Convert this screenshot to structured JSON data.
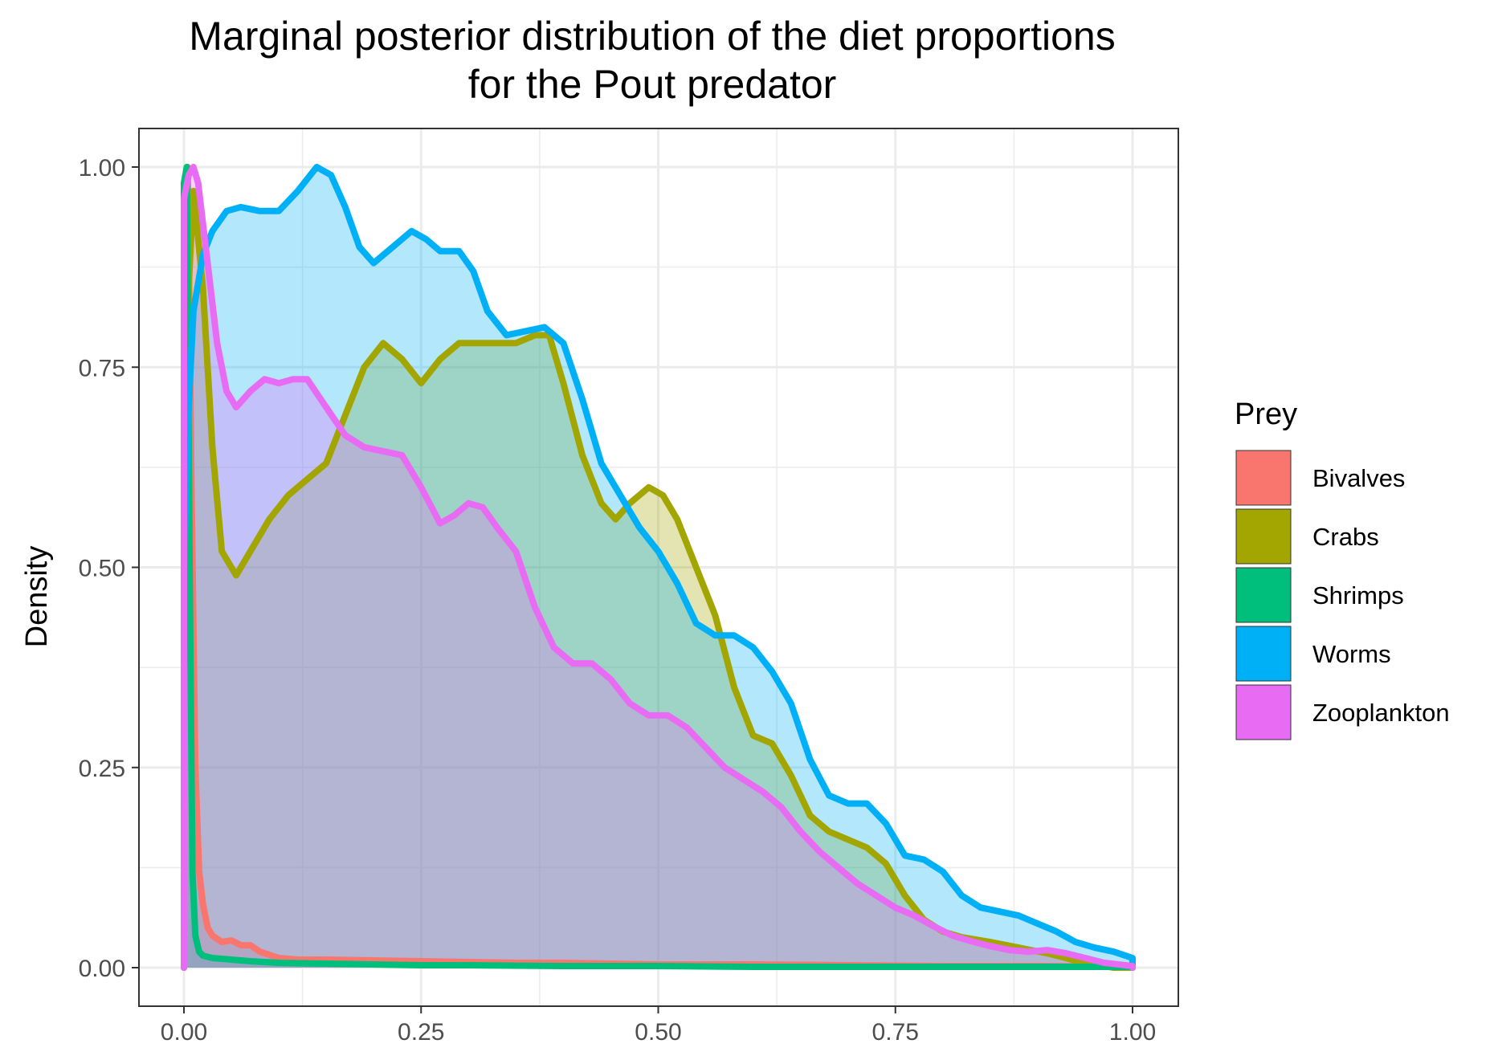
{
  "chart_data": {
    "type": "area",
    "title_line1": "Marginal posterior distribution of the diet proportions",
    "title_line2": "for the Pout predator",
    "xlabel": "",
    "ylabel": "Density",
    "xlim": [
      0,
      1
    ],
    "ylim": [
      0,
      1
    ],
    "x_ticks": [
      "0.00",
      "0.25",
      "0.50",
      "0.75",
      "1.00"
    ],
    "y_ticks": [
      "0.00",
      "0.25",
      "0.50",
      "0.75",
      "1.00"
    ],
    "grid": true,
    "legend_title": "Prey",
    "legend_position": "right",
    "series": [
      {
        "name": "Bivalves",
        "color": "#F8766D",
        "points": [
          [
            0,
            0
          ],
          [
            0,
            0.95
          ],
          [
            0.004,
            1.0
          ],
          [
            0.008,
            0.6
          ],
          [
            0.012,
            0.25
          ],
          [
            0.016,
            0.12
          ],
          [
            0.02,
            0.08
          ],
          [
            0.025,
            0.05
          ],
          [
            0.03,
            0.04
          ],
          [
            0.04,
            0.032
          ],
          [
            0.05,
            0.034
          ],
          [
            0.06,
            0.028
          ],
          [
            0.07,
            0.028
          ],
          [
            0.08,
            0.02
          ],
          [
            0.09,
            0.016
          ],
          [
            0.1,
            0.012
          ],
          [
            0.12,
            0.01
          ],
          [
            0.15,
            0.01
          ],
          [
            0.2,
            0.009
          ],
          [
            0.25,
            0.008
          ],
          [
            0.3,
            0.007
          ],
          [
            0.35,
            0.006
          ],
          [
            0.4,
            0.006
          ],
          [
            0.45,
            0.005
          ],
          [
            0.5,
            0.004
          ],
          [
            0.55,
            0.004
          ],
          [
            0.6,
            0.004
          ],
          [
            0.7,
            0.003
          ],
          [
            0.8,
            0.002
          ],
          [
            0.9,
            0.002
          ],
          [
            1.0,
            0.001
          ],
          [
            1.0,
            0
          ]
        ]
      },
      {
        "name": "Crabs",
        "color": "#A3A500",
        "points": [
          [
            0,
            0
          ],
          [
            0,
            0.6
          ],
          [
            0.005,
            0.85
          ],
          [
            0.01,
            0.97
          ],
          [
            0.02,
            0.85
          ],
          [
            0.03,
            0.65
          ],
          [
            0.04,
            0.52
          ],
          [
            0.055,
            0.49
          ],
          [
            0.07,
            0.52
          ],
          [
            0.09,
            0.56
          ],
          [
            0.11,
            0.59
          ],
          [
            0.13,
            0.61
          ],
          [
            0.15,
            0.63
          ],
          [
            0.17,
            0.69
          ],
          [
            0.19,
            0.75
          ],
          [
            0.21,
            0.78
          ],
          [
            0.23,
            0.76
          ],
          [
            0.25,
            0.73
          ],
          [
            0.27,
            0.76
          ],
          [
            0.29,
            0.78
          ],
          [
            0.31,
            0.78
          ],
          [
            0.33,
            0.78
          ],
          [
            0.35,
            0.78
          ],
          [
            0.37,
            0.79
          ],
          [
            0.385,
            0.79
          ],
          [
            0.4,
            0.73
          ],
          [
            0.42,
            0.64
          ],
          [
            0.44,
            0.58
          ],
          [
            0.455,
            0.56
          ],
          [
            0.47,
            0.58
          ],
          [
            0.49,
            0.6
          ],
          [
            0.505,
            0.59
          ],
          [
            0.52,
            0.56
          ],
          [
            0.54,
            0.5
          ],
          [
            0.56,
            0.44
          ],
          [
            0.58,
            0.35
          ],
          [
            0.6,
            0.29
          ],
          [
            0.62,
            0.28
          ],
          [
            0.64,
            0.24
          ],
          [
            0.66,
            0.19
          ],
          [
            0.68,
            0.17
          ],
          [
            0.7,
            0.16
          ],
          [
            0.72,
            0.15
          ],
          [
            0.74,
            0.13
          ],
          [
            0.76,
            0.09
          ],
          [
            0.78,
            0.06
          ],
          [
            0.8,
            0.045
          ],
          [
            0.82,
            0.038
          ],
          [
            0.85,
            0.032
          ],
          [
            0.88,
            0.025
          ],
          [
            0.91,
            0.018
          ],
          [
            0.93,
            0.012
          ],
          [
            0.95,
            0.005
          ],
          [
            0.97,
            0.002
          ],
          [
            0.98,
            0
          ],
          [
            1.0,
            0
          ]
        ]
      },
      {
        "name": "Shrimps",
        "color": "#00BF7D",
        "points": [
          [
            0,
            0
          ],
          [
            0,
            0.98
          ],
          [
            0.003,
            1.0
          ],
          [
            0.006,
            0.5
          ],
          [
            0.009,
            0.12
          ],
          [
            0.012,
            0.04
          ],
          [
            0.016,
            0.02
          ],
          [
            0.02,
            0.015
          ],
          [
            0.03,
            0.012
          ],
          [
            0.05,
            0.01
          ],
          [
            0.07,
            0.008
          ],
          [
            0.1,
            0.006
          ],
          [
            0.15,
            0.005
          ],
          [
            0.2,
            0.004
          ],
          [
            0.25,
            0.003
          ],
          [
            0.3,
            0.003
          ],
          [
            0.4,
            0.002
          ],
          [
            0.5,
            0.002
          ],
          [
            0.6,
            0.001
          ],
          [
            0.7,
            0.001
          ],
          [
            0.8,
            0.001
          ],
          [
            1.0,
            0.001
          ],
          [
            1.0,
            0
          ]
        ]
      },
      {
        "name": "Worms",
        "color": "#00B0F6",
        "points": [
          [
            0,
            0
          ],
          [
            0,
            0.5
          ],
          [
            0.005,
            0.7
          ],
          [
            0.01,
            0.82
          ],
          [
            0.02,
            0.89
          ],
          [
            0.03,
            0.92
          ],
          [
            0.045,
            0.945
          ],
          [
            0.06,
            0.95
          ],
          [
            0.08,
            0.945
          ],
          [
            0.1,
            0.945
          ],
          [
            0.12,
            0.97
          ],
          [
            0.14,
            1.0
          ],
          [
            0.155,
            0.99
          ],
          [
            0.17,
            0.95
          ],
          [
            0.185,
            0.9
          ],
          [
            0.2,
            0.88
          ],
          [
            0.22,
            0.9
          ],
          [
            0.24,
            0.92
          ],
          [
            0.255,
            0.91
          ],
          [
            0.27,
            0.895
          ],
          [
            0.29,
            0.895
          ],
          [
            0.305,
            0.87
          ],
          [
            0.32,
            0.82
          ],
          [
            0.34,
            0.79
          ],
          [
            0.36,
            0.795
          ],
          [
            0.38,
            0.8
          ],
          [
            0.4,
            0.78
          ],
          [
            0.42,
            0.71
          ],
          [
            0.44,
            0.63
          ],
          [
            0.46,
            0.59
          ],
          [
            0.48,
            0.55
          ],
          [
            0.5,
            0.52
          ],
          [
            0.52,
            0.48
          ],
          [
            0.54,
            0.43
          ],
          [
            0.56,
            0.415
          ],
          [
            0.58,
            0.415
          ],
          [
            0.6,
            0.4
          ],
          [
            0.62,
            0.37
          ],
          [
            0.64,
            0.33
          ],
          [
            0.66,
            0.26
          ],
          [
            0.68,
            0.215
          ],
          [
            0.7,
            0.205
          ],
          [
            0.72,
            0.205
          ],
          [
            0.74,
            0.18
          ],
          [
            0.76,
            0.14
          ],
          [
            0.78,
            0.135
          ],
          [
            0.8,
            0.12
          ],
          [
            0.82,
            0.09
          ],
          [
            0.84,
            0.075
          ],
          [
            0.86,
            0.07
          ],
          [
            0.88,
            0.065
          ],
          [
            0.9,
            0.055
          ],
          [
            0.92,
            0.045
          ],
          [
            0.94,
            0.032
          ],
          [
            0.96,
            0.025
          ],
          [
            0.98,
            0.02
          ],
          [
            1.0,
            0.012
          ],
          [
            1.0,
            0
          ]
        ]
      },
      {
        "name": "Zooplankton",
        "color": "#E76BF3",
        "points": [
          [
            0,
            0
          ],
          [
            0,
            0.96
          ],
          [
            0.005,
            0.99
          ],
          [
            0.01,
            1.0
          ],
          [
            0.015,
            0.98
          ],
          [
            0.025,
            0.88
          ],
          [
            0.035,
            0.78
          ],
          [
            0.045,
            0.72
          ],
          [
            0.055,
            0.7
          ],
          [
            0.07,
            0.72
          ],
          [
            0.085,
            0.735
          ],
          [
            0.1,
            0.73
          ],
          [
            0.115,
            0.735
          ],
          [
            0.13,
            0.735
          ],
          [
            0.15,
            0.7
          ],
          [
            0.17,
            0.665
          ],
          [
            0.19,
            0.65
          ],
          [
            0.21,
            0.645
          ],
          [
            0.23,
            0.64
          ],
          [
            0.25,
            0.6
          ],
          [
            0.27,
            0.555
          ],
          [
            0.285,
            0.565
          ],
          [
            0.3,
            0.58
          ],
          [
            0.315,
            0.575
          ],
          [
            0.33,
            0.55
          ],
          [
            0.35,
            0.52
          ],
          [
            0.37,
            0.45
          ],
          [
            0.39,
            0.4
          ],
          [
            0.41,
            0.38
          ],
          [
            0.43,
            0.38
          ],
          [
            0.45,
            0.36
          ],
          [
            0.47,
            0.33
          ],
          [
            0.49,
            0.315
          ],
          [
            0.51,
            0.315
          ],
          [
            0.53,
            0.3
          ],
          [
            0.55,
            0.275
          ],
          [
            0.57,
            0.25
          ],
          [
            0.59,
            0.235
          ],
          [
            0.61,
            0.22
          ],
          [
            0.63,
            0.2
          ],
          [
            0.65,
            0.17
          ],
          [
            0.67,
            0.145
          ],
          [
            0.69,
            0.125
          ],
          [
            0.71,
            0.105
          ],
          [
            0.73,
            0.09
          ],
          [
            0.75,
            0.075
          ],
          [
            0.77,
            0.065
          ],
          [
            0.79,
            0.052
          ],
          [
            0.81,
            0.04
          ],
          [
            0.83,
            0.033
          ],
          [
            0.85,
            0.027
          ],
          [
            0.87,
            0.022
          ],
          [
            0.89,
            0.02
          ],
          [
            0.91,
            0.022
          ],
          [
            0.93,
            0.018
          ],
          [
            0.95,
            0.012
          ],
          [
            0.97,
            0.006
          ],
          [
            1.0,
            0.002
          ],
          [
            1.0,
            0
          ]
        ]
      }
    ]
  }
}
